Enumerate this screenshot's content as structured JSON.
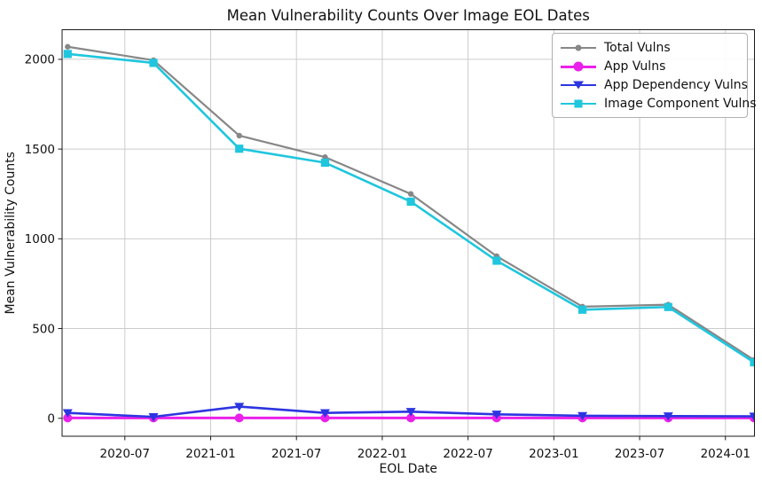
{
  "chart_data": {
    "type": "line",
    "title": "Mean Vulnerability Counts Over Image EOL Dates",
    "xlabel": "EOL Date",
    "ylabel": "Mean Vulnerability Counts",
    "x_dates": [
      "2020-03",
      "2020-09",
      "2021-03",
      "2021-09",
      "2022-03",
      "2022-09",
      "2023-03",
      "2023-09",
      "2024-03"
    ],
    "x_months": [
      0,
      6,
      12,
      18,
      24,
      30,
      36,
      42,
      48
    ],
    "series": [
      {
        "name": "Total Vulns",
        "color": "#878787",
        "marker": "dot",
        "values": [
          2070,
          1995,
          1575,
          1455,
          1250,
          903,
          622,
          633,
          325
        ]
      },
      {
        "name": "App Vulns",
        "color": "#ea21ea",
        "marker": "circle",
        "values": [
          2,
          2,
          2,
          2,
          2,
          2,
          2,
          2,
          2
        ]
      },
      {
        "name": "App Dependency Vulns",
        "color": "#2c35e0",
        "marker": "triangle-down",
        "values": [
          30,
          8,
          65,
          30,
          37,
          22,
          14,
          12,
          11
        ]
      },
      {
        "name": "Image Component Vulns",
        "color": "#1fc6de",
        "marker": "square",
        "values": [
          2030,
          1980,
          1502,
          1424,
          1207,
          878,
          605,
          620,
          312
        ]
      }
    ],
    "xticks": {
      "months": [
        4,
        10,
        16,
        22,
        28,
        34,
        40,
        46
      ],
      "labels": [
        "2020-07",
        "2021-01",
        "2021-07",
        "2022-01",
        "2022-07",
        "2023-01",
        "2023-07",
        "2024-01"
      ]
    },
    "yticks": {
      "values": [
        0,
        500,
        1000,
        1500,
        2000
      ],
      "labels": [
        "0",
        "500",
        "1000",
        "1500",
        "2000"
      ]
    },
    "xlim_months": [
      -0.39,
      48.03
    ],
    "ylim": [
      -100,
      2165
    ],
    "grid": true,
    "grid_color": "#cccccc",
    "spine_color": "#1a1a1a",
    "legend_position": "upper right",
    "legend_border_color": "#b0b0b0"
  }
}
